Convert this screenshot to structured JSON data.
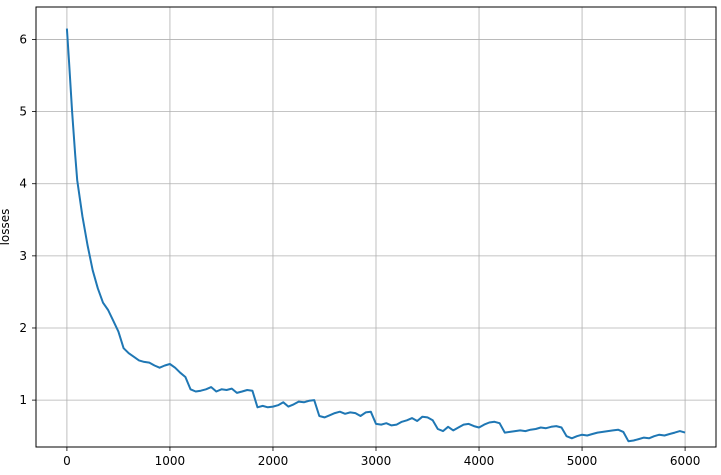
{
  "chart_data": {
    "type": "line",
    "title": "",
    "xlabel": "",
    "ylabel": "losses",
    "xlim": [
      -300,
      6300
    ],
    "ylim": [
      0.35,
      6.45
    ],
    "grid": true,
    "x_ticks": [
      0,
      1000,
      2000,
      3000,
      4000,
      5000,
      6000
    ],
    "x_tick_labels": [
      "0",
      "1000",
      "2000",
      "3000",
      "4000",
      "5000",
      "6000"
    ],
    "y_ticks": [
      1,
      2,
      3,
      4,
      5,
      6
    ],
    "y_tick_labels": [
      "1",
      "2",
      "3",
      "4",
      "5",
      "6"
    ],
    "series": [
      {
        "color": "#1f77b4",
        "x": [
          0,
          20,
          50,
          80,
          100,
          150,
          200,
          250,
          300,
          350,
          400,
          450,
          500,
          550,
          600,
          650,
          700,
          750,
          800,
          850,
          900,
          950,
          1000,
          1050,
          1100,
          1150,
          1200,
          1250,
          1300,
          1350,
          1400,
          1450,
          1500,
          1550,
          1600,
          1650,
          1700,
          1750,
          1800,
          1850,
          1900,
          1950,
          2000,
          2050,
          2100,
          2150,
          2200,
          2250,
          2300,
          2350,
          2400,
          2450,
          2500,
          2550,
          2600,
          2650,
          2700,
          2750,
          2800,
          2850,
          2900,
          2950,
          3000,
          3050,
          3100,
          3150,
          3200,
          3250,
          3300,
          3350,
          3400,
          3450,
          3500,
          3550,
          3600,
          3650,
          3700,
          3750,
          3800,
          3850,
          3900,
          3950,
          4000,
          4050,
          4100,
          4150,
          4200,
          4250,
          4300,
          4350,
          4400,
          4450,
          4500,
          4550,
          4600,
          4650,
          4700,
          4750,
          4800,
          4850,
          4900,
          4950,
          5000,
          5050,
          5100,
          5150,
          5200,
          5250,
          5300,
          5350,
          5400,
          5450,
          5500,
          5550,
          5600,
          5650,
          5700,
          5750,
          5800,
          5850,
          5900,
          5950,
          6000
        ],
        "y": [
          6.15,
          5.7,
          5.0,
          4.4,
          4.05,
          3.55,
          3.15,
          2.8,
          2.55,
          2.35,
          2.25,
          2.1,
          1.95,
          1.72,
          1.65,
          1.6,
          1.55,
          1.53,
          1.52,
          1.48,
          1.45,
          1.48,
          1.5,
          1.45,
          1.38,
          1.32,
          1.15,
          1.12,
          1.13,
          1.15,
          1.18,
          1.12,
          1.15,
          1.14,
          1.16,
          1.1,
          1.12,
          1.14,
          1.13,
          0.9,
          0.92,
          0.9,
          0.91,
          0.93,
          0.97,
          0.91,
          0.94,
          0.98,
          0.97,
          0.99,
          1.0,
          0.78,
          0.76,
          0.79,
          0.82,
          0.84,
          0.81,
          0.83,
          0.82,
          0.78,
          0.83,
          0.84,
          0.67,
          0.66,
          0.68,
          0.65,
          0.66,
          0.7,
          0.72,
          0.75,
          0.71,
          0.77,
          0.76,
          0.72,
          0.6,
          0.57,
          0.63,
          0.58,
          0.62,
          0.66,
          0.67,
          0.64,
          0.62,
          0.66,
          0.69,
          0.7,
          0.68,
          0.55,
          0.56,
          0.57,
          0.58,
          0.57,
          0.59,
          0.6,
          0.62,
          0.61,
          0.63,
          0.64,
          0.62,
          0.5,
          0.47,
          0.5,
          0.52,
          0.51,
          0.53,
          0.55,
          0.56,
          0.57,
          0.58,
          0.59,
          0.56,
          0.43,
          0.44,
          0.46,
          0.48,
          0.47,
          0.5,
          0.52,
          0.51,
          0.53,
          0.55,
          0.57,
          0.55
        ]
      }
    ]
  }
}
